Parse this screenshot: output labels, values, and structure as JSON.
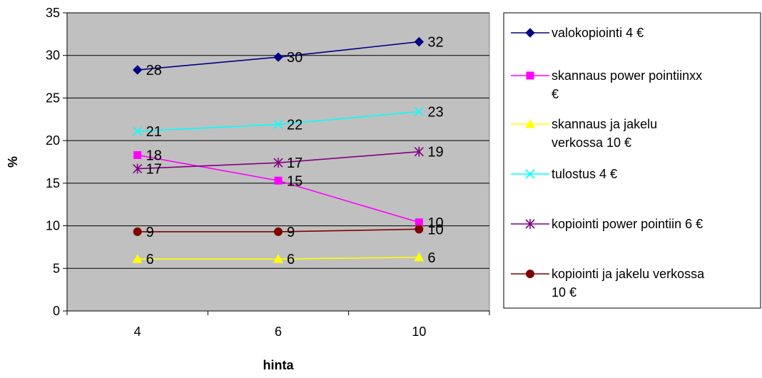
{
  "chart_data": {
    "type": "line",
    "categories": [
      "4",
      "6",
      "10"
    ],
    "xlabel": "hinta",
    "ylabel": "%",
    "ylim": [
      0,
      35
    ],
    "yticks": [
      0,
      5,
      10,
      15,
      20,
      25,
      30,
      35
    ],
    "grid": "horizontal",
    "legend": "right",
    "plot_background": "#c0c0c0",
    "series": [
      {
        "name": "valokopiointi 4 €",
        "legend_lines": [
          "valokopiointi 4 €"
        ],
        "values": [
          28.3,
          29.8,
          31.6
        ],
        "labels": [
          "28",
          "30",
          "32"
        ],
        "color": "#000080",
        "marker": "diamond"
      },
      {
        "name": "skannaus power pointiinxx €",
        "legend_lines": [
          "skannaus power pointiinxx",
          "€"
        ],
        "values": [
          18.3,
          15.3,
          10.4
        ],
        "labels": [
          "18",
          "15",
          "10"
        ],
        "color": "#ff00ff",
        "marker": "square"
      },
      {
        "name": "skannaus ja jakelu verkossa 10 €",
        "legend_lines": [
          "skannaus ja jakelu",
          "verkossa 10 €"
        ],
        "values": [
          6.1,
          6.1,
          6.3
        ],
        "labels": [
          "6",
          "6",
          "6"
        ],
        "color": "#ffff00",
        "marker": "triangle"
      },
      {
        "name": "tulostus 4 €",
        "legend_lines": [
          "tulostus 4 €"
        ],
        "values": [
          21.1,
          21.9,
          23.4
        ],
        "labels": [
          "21",
          "22",
          "23"
        ],
        "color": "#00ffff",
        "marker": "x"
      },
      {
        "name": "kopiointi power pointiin 6 €",
        "legend_lines": [
          "kopiointi power pointiin 6 €"
        ],
        "values": [
          16.7,
          17.4,
          18.7
        ],
        "labels": [
          "17",
          "17",
          "19"
        ],
        "color": "#800080",
        "marker": "star"
      },
      {
        "name": "kopiointi ja jakelu verkossa 10 €",
        "legend_lines": [
          "kopiointi ja jakelu verkossa",
          "10 €"
        ],
        "values": [
          9.3,
          9.3,
          9.6
        ],
        "labels": [
          "9",
          "9",
          "10"
        ],
        "color": "#800000",
        "marker": "circle"
      }
    ]
  }
}
